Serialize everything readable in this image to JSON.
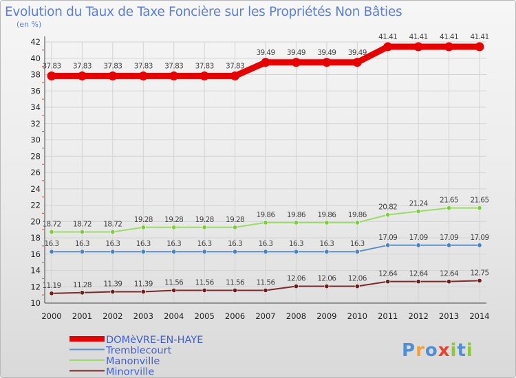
{
  "chart_data": {
    "type": "line",
    "title": "Evolution du Taux de Taxe Foncière sur les Propriétés Non Bâties",
    "unit_label": "(en %)",
    "x": [
      "2000",
      "2001",
      "2002",
      "2003",
      "2004",
      "2005",
      "2006",
      "2007",
      "2008",
      "2009",
      "2010",
      "2011",
      "2012",
      "2013",
      "2014"
    ],
    "ylim": [
      10,
      42
    ],
    "yticks": [
      10,
      12,
      14,
      16,
      18,
      20,
      22,
      24,
      26,
      28,
      30,
      32,
      34,
      36,
      38,
      40,
      42
    ],
    "series": [
      {
        "name": "DOMèVRE-EN-HAYE",
        "color": "#e60000",
        "bold": true,
        "values": [
          37.83,
          37.83,
          37.83,
          37.83,
          37.83,
          37.83,
          37.83,
          39.49,
          39.49,
          39.49,
          39.49,
          41.41,
          41.41,
          41.41,
          41.41
        ],
        "labels": [
          "37.83",
          "37.83",
          "37.83",
          "37.83",
          "37.83",
          "37.83",
          "37.83",
          "39.49",
          "39.49",
          "39.49",
          "39.49",
          "41.41",
          "41.41",
          "41.41",
          "41.41"
        ]
      },
      {
        "name": "Tremblecourt",
        "color": "#5b8fc8",
        "marker": "#4a82c0",
        "values": [
          16.3,
          16.3,
          16.3,
          16.3,
          16.3,
          16.3,
          16.3,
          16.3,
          16.3,
          16.3,
          16.3,
          17.09,
          17.09,
          17.09,
          17.09
        ],
        "labels": [
          "16.3",
          "16.3",
          "16.3",
          "16.3",
          "16.3",
          "16.3",
          "16.3",
          "16.3",
          "16.3",
          "16.3",
          "16.3",
          "17.09",
          "17.09",
          "17.09",
          "17.09"
        ]
      },
      {
        "name": "Manonville",
        "color": "#99dd66",
        "marker": "#7ccc3c",
        "values": [
          18.72,
          18.72,
          18.72,
          19.28,
          19.28,
          19.28,
          19.28,
          19.86,
          19.86,
          19.86,
          19.86,
          20.82,
          21.24,
          21.65,
          21.65
        ],
        "labels": [
          "18.72",
          "18.72",
          "18.72",
          "19.28",
          "19.28",
          "19.28",
          "19.28",
          "19.86",
          "19.86",
          "19.86",
          "19.86",
          "20.82",
          "21.24",
          "21.65",
          "21.65"
        ]
      },
      {
        "name": "Minorville",
        "color": "#7a2a2a",
        "marker": "#6b1e1e",
        "values": [
          11.19,
          11.28,
          11.39,
          11.39,
          11.56,
          11.56,
          11.56,
          11.56,
          12.06,
          12.06,
          12.06,
          12.64,
          12.64,
          12.64,
          12.75
        ],
        "labels": [
          "11.19",
          "11.28",
          "11.39",
          "11.39",
          "11.56",
          "11.56",
          "11.56",
          "11.56",
          "12.06",
          "12.06",
          "12.06",
          "12.64",
          "12.64",
          "12.64",
          "12.75"
        ]
      }
    ]
  },
  "logo": {
    "letters": [
      "P",
      "r",
      "o",
      "x",
      "i",
      "t",
      "i"
    ],
    "colors": [
      "#4f8fd8",
      "#f2a03a",
      "#4f8fd8",
      "#e8432e",
      "#8bc83a",
      "#4f8fd8",
      "#8bc83a"
    ]
  }
}
